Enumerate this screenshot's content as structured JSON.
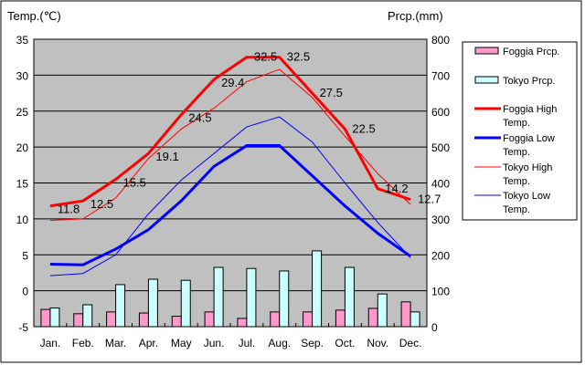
{
  "chart_data": {
    "type": "bar+line",
    "categories": [
      "Jan.",
      "Feb.",
      "Mar.",
      "Apr.",
      "May",
      "Jun.",
      "Jul.",
      "Aug.",
      "Sep.",
      "Oct.",
      "Nov.",
      "Dec."
    ],
    "ylabel_left": "Temp.(℃)",
    "ylabel_right": "Prcp.(mm)",
    "ylim_left": [
      -5,
      35
    ],
    "ylim_right": [
      0,
      800
    ],
    "left_ticks": [
      "-5",
      "0",
      "5",
      "10",
      "15",
      "20",
      "25",
      "30",
      "35"
    ],
    "right_ticks": [
      "0",
      "100",
      "200",
      "300",
      "400",
      "500",
      "600",
      "700",
      "800"
    ],
    "grid": true,
    "legend_position": "right",
    "bar_series": [
      {
        "name": "Foggia Prcp.",
        "color": "#ff99cc",
        "values": [
          48,
          36,
          41,
          38,
          29,
          41,
          23,
          41,
          41,
          46,
          51,
          69
        ]
      },
      {
        "name": "Tokyo Prcp.",
        "color": "#ccffff",
        "values": [
          52,
          61,
          117,
          132,
          129,
          165,
          162,
          155,
          211,
          165,
          91,
          41
        ]
      }
    ],
    "line_series": [
      {
        "name": "Foggia High Temp.",
        "color": "#ff0000",
        "width": 3,
        "labels": true,
        "values": [
          11.8,
          12.5,
          15.5,
          19.1,
          24.5,
          29.4,
          32.5,
          32.5,
          27.5,
          22.5,
          14.2,
          12.7
        ]
      },
      {
        "name": "Foggia Low Temp.",
        "color": "#0000ff",
        "width": 3,
        "labels": false,
        "values": [
          3.7,
          3.6,
          5.8,
          8.5,
          12.5,
          17.3,
          20.2,
          20.2,
          16.0,
          11.8,
          8.0,
          4.8
        ]
      },
      {
        "name": "Tokyo High Temp.",
        "color": "#ff0000",
        "width": 1,
        "labels": false,
        "values": [
          9.8,
          10.0,
          12.9,
          18.4,
          22.5,
          25.4,
          29.1,
          30.8,
          26.9,
          21.5,
          16.3,
          12.0
        ]
      },
      {
        "name": "Tokyo Low Temp.",
        "color": "#0000ff",
        "width": 1,
        "labels": false,
        "values": [
          2.1,
          2.4,
          5.0,
          10.7,
          15.4,
          19.1,
          22.8,
          24.2,
          20.7,
          15.0,
          9.5,
          4.6
        ]
      }
    ],
    "legend": [
      {
        "line1": "Foggia Prcp.",
        "line2": ""
      },
      {
        "line1": "Tokyo Prcp.",
        "line2": ""
      },
      {
        "line1": "Foggia High",
        "line2": "Temp."
      },
      {
        "line1": "Foggia Low",
        "line2": "Temp."
      },
      {
        "line1": "Tokyo High",
        "line2": "Temp."
      },
      {
        "line1": "Tokyo Low",
        "line2": "Temp."
      }
    ]
  }
}
